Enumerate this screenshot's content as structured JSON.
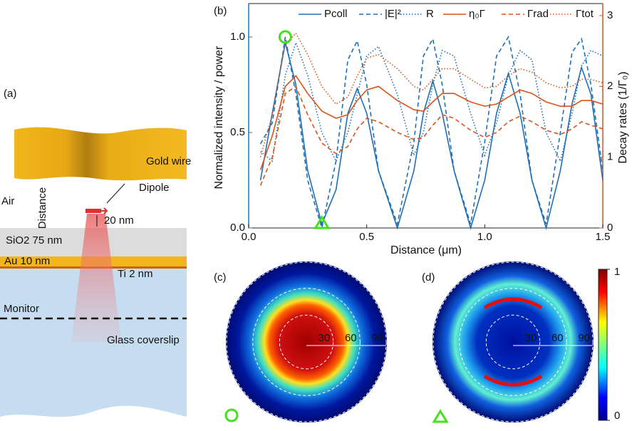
{
  "schematic": {
    "label": "(a)",
    "gold": "Gold wire",
    "air": "Air",
    "distance": "Distance",
    "dipole": "Dipole",
    "gap": "20 nm",
    "sio2": "SiO2 75 nm",
    "au": "Au 10 nm",
    "ti": "Ti 2 nm",
    "monitor": "Monitor",
    "glass": "Glass coverslip"
  },
  "chart_data": {
    "type": "line",
    "label": "(b)",
    "xlabel": "Distance (μm)",
    "ylabel": "Normalized intensity / power",
    "y2label": "Decay rates (1/Γ₀)",
    "xlim": [
      0,
      1.5
    ],
    "xticks": [
      {
        "value": 0,
        "label": "0.0"
      },
      0.5,
      {
        "value": 1,
        "label": "1.0"
      },
      1.5
    ],
    "ylim": [
      0,
      1.175
    ],
    "yticks": [
      {
        "value": 0,
        "label": "0.0"
      },
      0.5,
      {
        "value": 1,
        "label": "1.0"
      }
    ],
    "y2lim": [
      0,
      3.17
    ],
    "y2ticks": [
      0,
      1,
      2,
      3
    ],
    "left_color": "#1f77b4",
    "right_color": "#d9541a",
    "x": [
      0.05,
      0.1,
      0.155,
      0.2,
      0.25,
      0.31,
      0.37,
      0.42,
      0.46,
      0.5,
      0.55,
      0.63,
      0.7,
      0.74,
      0.78,
      0.82,
      0.87,
      0.94,
      1.0,
      1.05,
      1.1,
      1.15,
      1.2,
      1.26,
      1.32,
      1.37,
      1.41,
      1.45,
      1.5
    ],
    "series": [
      {
        "name": "Pcoll",
        "color": "#1f6fb4",
        "dash": "solid",
        "values": [
          0.25,
          0.6,
          0.97,
          0.75,
          0.3,
          0.02,
          0.2,
          0.6,
          0.73,
          0.6,
          0.3,
          0.0,
          0.3,
          0.6,
          0.77,
          0.6,
          0.3,
          0.0,
          0.25,
          0.6,
          0.81,
          0.6,
          0.25,
          0.0,
          0.3,
          0.65,
          0.84,
          0.7,
          0.25
        ]
      },
      {
        "name": "|E|²",
        "color": "#1f6fb4",
        "dash": "dashed",
        "values": [
          0.44,
          0.55,
          1.0,
          0.7,
          0.25,
          0.0,
          0.35,
          0.88,
          0.98,
          0.75,
          0.3,
          0.02,
          0.45,
          0.9,
          0.99,
          0.75,
          0.3,
          0.02,
          0.45,
          0.9,
          1.0,
          0.7,
          0.25,
          0.02,
          0.5,
          0.92,
          0.99,
          0.75,
          0.3
        ]
      },
      {
        "name": "R",
        "color": "#1f6fb4",
        "dash": "dotted",
        "values": [
          0.4,
          0.35,
          0.8,
          0.97,
          0.8,
          0.5,
          0.35,
          0.5,
          0.7,
          0.9,
          0.95,
          0.7,
          0.38,
          0.5,
          0.75,
          0.93,
          0.9,
          0.6,
          0.38,
          0.55,
          0.8,
          0.93,
          0.88,
          0.5,
          0.35,
          0.6,
          0.85,
          0.93,
          0.9
        ]
      },
      {
        "name": "η₀Γ",
        "color": "#d9541a",
        "dash": "solid",
        "axis": "y2",
        "values": [
          0.82,
          1.3,
          2.0,
          2.15,
          1.9,
          1.65,
          1.55,
          1.6,
          1.8,
          1.95,
          2.0,
          1.8,
          1.67,
          1.65,
          1.78,
          1.9,
          1.9,
          1.78,
          1.72,
          1.75,
          1.85,
          1.95,
          1.9,
          1.78,
          1.72,
          1.72,
          1.8,
          1.8,
          1.75
        ]
      },
      {
        "name": "Γrad",
        "color": "#d9541a",
        "dash": "dashed",
        "axis": "y2",
        "values": [
          0.6,
          1.0,
          1.9,
          2.0,
          1.6,
          1.2,
          1.05,
          1.15,
          1.4,
          1.55,
          1.5,
          1.35,
          1.25,
          1.28,
          1.45,
          1.6,
          1.55,
          1.38,
          1.28,
          1.35,
          1.5,
          1.58,
          1.5,
          1.38,
          1.32,
          1.4,
          1.5,
          1.45,
          1.4
        ]
      },
      {
        "name": "Γtot",
        "color": "#d9541a",
        "dash": "dotted",
        "axis": "y2",
        "values": [
          1.0,
          1.6,
          2.6,
          2.75,
          2.45,
          2.0,
          1.75,
          1.85,
          2.15,
          2.4,
          2.45,
          2.25,
          2.0,
          1.95,
          2.1,
          2.25,
          2.25,
          2.1,
          1.98,
          2.0,
          2.15,
          2.25,
          2.2,
          2.05,
          1.98,
          2.0,
          2.1,
          2.1,
          2.05
        ]
      }
    ]
  },
  "maps": {
    "c_label": "(c)",
    "d_label": "(d)",
    "angles": [
      30,
      60,
      90
    ],
    "colorbar": [
      1,
      0
    ]
  }
}
